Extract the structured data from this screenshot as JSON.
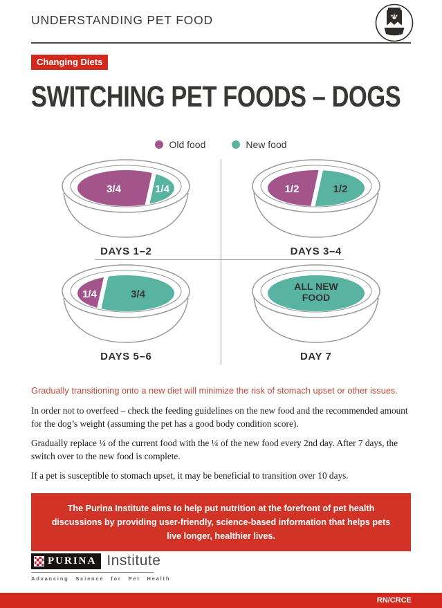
{
  "header": {
    "title": "UNDERSTANDING PET FOOD",
    "icon": "pet-food-bag-and-bowl-icon"
  },
  "badge": {
    "label": "Changing Diets"
  },
  "page_title": "SWITCHING PET FOODS – DOGS",
  "chart_data": {
    "type": "bowl-fractions",
    "colors": {
      "old": "#a3548b",
      "new": "#58b4a1"
    },
    "legend": [
      {
        "label": "Old food",
        "food": "old",
        "color": "#a3548b"
      },
      {
        "label": "New food",
        "food": "new",
        "color": "#58b4a1"
      }
    ],
    "bowls": [
      {
        "label": "DAYS 1–2",
        "segments": [
          {
            "food": "old",
            "fraction": 0.75,
            "text": "3/4",
            "text_color": "#ffffff"
          },
          {
            "food": "new",
            "fraction": 0.25,
            "text": "1/4",
            "text_color": "#ffffff"
          }
        ]
      },
      {
        "label": "DAYS 3–4",
        "segments": [
          {
            "food": "old",
            "fraction": 0.5,
            "text": "1/2",
            "text_color": "#ffffff"
          },
          {
            "food": "new",
            "fraction": 0.5,
            "text": "1/2",
            "text_color": "#3a3835"
          }
        ]
      },
      {
        "label": "DAYS 5–6",
        "segments": [
          {
            "food": "old",
            "fraction": 0.25,
            "text": "1/4",
            "text_color": "#ffffff"
          },
          {
            "food": "new",
            "fraction": 0.75,
            "text": "3/4",
            "text_color": "#3a3835"
          }
        ]
      },
      {
        "label": "DAY 7",
        "segments": [
          {
            "food": "new",
            "fraction": 1.0,
            "text": "ALL NEW\nFOOD",
            "text_color": "#333333"
          }
        ]
      }
    ]
  },
  "highlight": "Gradually transitioning onto a new diet will minimize the risk of stomach upset or other issues.",
  "paragraphs": [
    "In order not to overfeed – check the feeding guidelines on the new food and the recommended amount for the dog’s weight (assuming the pet has a good body condition score).",
    "Gradually replace ¼ of the current food with the ¼ of the new food every 2nd day. After 7 days, the switch over to the new food is complete.",
    "If a pet is susceptible to stomach upset, it may be beneficial to transition over 10 days."
  ],
  "callout": "The Purina Institute aims to help put nutrition at the forefront of pet health discussions by providing user-friendly, science-based information that helps pets live longer, healthier lives.",
  "footer": {
    "brand": "PURINA",
    "brand_suffix": "Institute",
    "tagline": "Advancing Science for Pet Health",
    "code": "RN/CRCE"
  },
  "colors": {
    "accent_red": "#d2281e",
    "callout_red": "#d13327",
    "highlight_text_red": "#bf4a3a",
    "old_food_purple": "#a3548b",
    "new_food_teal": "#58b4a1"
  }
}
